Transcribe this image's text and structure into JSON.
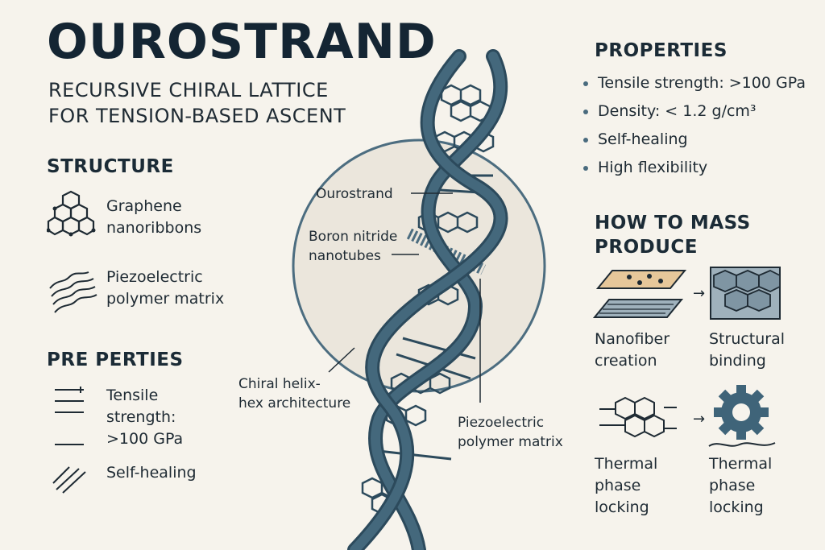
{
  "header": {
    "title": "OUROSTRAND",
    "subtitle": "RECURSIVE CHIRAL LATTICE\nFOR TENSION-BASED ASCENT"
  },
  "structure": {
    "heading": "STRUCTURE",
    "items": [
      {
        "icon": "graphene-hex-icon",
        "label": "Graphene\nnanoribbons"
      },
      {
        "icon": "wave-lines-icon",
        "label": "Piezoelectric\npolymer matrix"
      }
    ]
  },
  "left_properties": {
    "heading": "PRE PERTIES",
    "items": [
      {
        "icon": "tension-lines-icon",
        "label": "Tensile\nstrength:\n>100 GPa"
      },
      {
        "icon": "hatch-lines-icon",
        "label": "Self-healing"
      }
    ]
  },
  "diagram": {
    "labels": {
      "ourostrand": "Ourostrand",
      "boron": "Boron nitride\nnanotubes",
      "chiral": "Chiral helix-\nhex architecture",
      "piezo": "Piezoelectric\npolymer matrix"
    },
    "colors": {
      "strand": "#3f6479",
      "strand_dark": "#2c4a5c",
      "circle_fill": "#ebe6dc",
      "circle_stroke": "#4c6d80"
    }
  },
  "right_properties": {
    "heading": "PROPERTIES",
    "items": [
      "Tensile strength: >100 GPa",
      "Density: < 1.2 g/cm³",
      "Self-healing",
      "High flexibility"
    ]
  },
  "mass_produce": {
    "heading": "HOW TO MASS\nPRODUCE",
    "steps": [
      {
        "icon": "nanofiber-plate-icon",
        "label": "Nanofiber\ncreation"
      },
      {
        "icon": "hex-block-icon",
        "label": "Structural\nbinding"
      },
      {
        "icon": "hex-network-icon",
        "label": "Thermal\nphase\nlocking"
      },
      {
        "icon": "gear-icon",
        "label": "Thermal\nphase\nlocking"
      }
    ],
    "arrow": "→"
  }
}
